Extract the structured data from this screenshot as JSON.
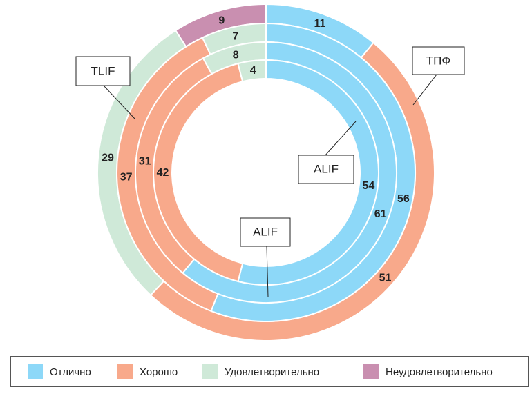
{
  "chart_data": {
    "type": "multi_donut",
    "categories": [
      "Отлично",
      "Хорошо",
      "Удовлетворительно",
      "Неудовлетворительно"
    ],
    "colors": [
      "#8dd8f8",
      "#f8a98b",
      "#cfe9d8",
      "#c98fb0"
    ],
    "series": [
      {
        "name": "ТПФ",
        "values": [
          11,
          51,
          29,
          9
        ]
      },
      {
        "name": "TLIF",
        "values": [
          56,
          37,
          7,
          0
        ]
      },
      {
        "name": "ALIF",
        "values": [
          61,
          31,
          8,
          0
        ]
      },
      {
        "name": "ALIF",
        "values": [
          54,
          42,
          4,
          0
        ]
      }
    ]
  }
}
